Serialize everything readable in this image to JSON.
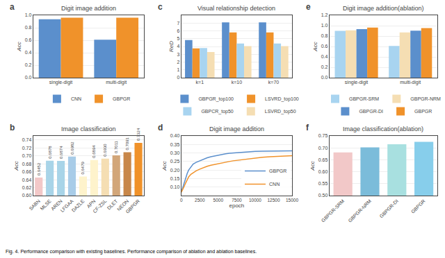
{
  "chart_data": [
    {
      "type": "bar",
      "title": "Digit image addition",
      "ylabel": "Acc",
      "categories": [
        "single-digit",
        "multi-digit"
      ],
      "series": [
        {
          "name": "CNN",
          "color": "#5b8fcc",
          "values": [
            0.935,
            0.607
          ]
        },
        {
          "name": "GBPGR",
          "color": "#f0922a",
          "values": [
            0.962,
            0.962
          ]
        }
      ],
      "ylim": [
        0.0,
        1.0
      ],
      "yticks": [
        {
          "value": 0,
          "label": "0.0"
        },
        0.2,
        0.4,
        0.6,
        0.8,
        {
          "value": 1,
          "label": "1.0"
        }
      ],
      "grid": true,
      "legend": "bottom",
      "annotations": [
        {
          "text": "a"
        }
      ]
    },
    {
      "type": "bar",
      "title": "Image classification",
      "ylabel": "Acc",
      "categories": [
        "SABN",
        "MLSE",
        "AREN",
        "LFGAA",
        "DAZLE",
        "APN",
        "CF-ZSL",
        "DLET",
        "NEON",
        "GBPGR"
      ],
      "values": [
        0.6452,
        0.6878,
        0.6874,
        0.6982,
        0.6479,
        0.6894,
        0.693,
        0.7011,
        0.7091,
        0.7324
      ],
      "value_labels": [
        "0.6452",
        "0.6878",
        "0.6874",
        "0.6982",
        "0.6479",
        "0.6894",
        "0.6930",
        "0.7011",
        "0.7091",
        "0.7324"
      ],
      "colors": [
        "#f2c8c8",
        "#a8d4e8",
        "#a8d4e8",
        "#a8cce8",
        "#fef3cc",
        "#fef3cc",
        "#f5deb3",
        "#d2a679",
        "#c8874a",
        "#f0922a"
      ],
      "data_labels": true,
      "ylim": [
        0.6,
        0.75
      ],
      "yticks": [
        {
          "value": 0.6,
          "label": "0.60"
        },
        0.62,
        0.64,
        0.66,
        0.68,
        {
          "value": 0.7,
          "label": "0.70"
        },
        0.72,
        0.74
      ],
      "grid": true,
      "annotations": [
        {
          "text": "b"
        }
      ]
    },
    {
      "type": "bar",
      "title": "Visual relationship detection",
      "ylabel": "ReD",
      "categories": [
        "k=1",
        "k=10",
        "k=70"
      ],
      "series": [
        {
          "name": "GBPGR_top100",
          "color": "#5b8fcc",
          "values": [
            4.82,
            7.08,
            7.08
          ]
        },
        {
          "name": "LSVRD_top100",
          "color": "#f0922a",
          "values": [
            3.76,
            5.79,
            5.79
          ]
        },
        {
          "name": "GBPCR_top50",
          "color": "#a8d4f0",
          "values": [
            3.79,
            4.38,
            4.38
          ]
        },
        {
          "name": "LSVRD_top50",
          "color": "#f5deb3",
          "values": [
            3.3,
            4.05,
            4.05
          ]
        }
      ],
      "ylim": [
        0,
        8
      ],
      "yticks": [
        0,
        1,
        2,
        3,
        4,
        5,
        6,
        7
      ],
      "grid": true,
      "legend": "bottom",
      "annotations": [
        {
          "text": "c"
        }
      ]
    },
    {
      "type": "line",
      "title": "Digit image addition",
      "xlabel": "epoch",
      "ylabel": "Acc",
      "x": [
        0,
        200,
        400,
        600,
        800,
        1000,
        1300,
        1600,
        2000,
        2500,
        3000,
        3500,
        4000,
        4500,
        5000,
        5500,
        6000,
        6500,
        7000,
        8000,
        9000,
        10000,
        11000,
        12000,
        13000,
        14000,
        15000
      ],
      "series": [
        {
          "name": "GBPGR",
          "color": "#5b8fcc",
          "values": [
            0.07,
            0.1,
            0.13,
            0.16,
            0.18,
            0.2,
            0.22,
            0.235,
            0.245,
            0.255,
            0.265,
            0.272,
            0.278,
            0.283,
            0.288,
            0.292,
            0.295,
            0.298,
            0.3,
            0.304,
            0.307,
            0.309,
            0.31,
            0.311,
            0.311,
            0.312,
            0.312
          ]
        },
        {
          "name": "CNN",
          "color": "#f0922a",
          "values": [
            0.07,
            0.085,
            0.105,
            0.125,
            0.145,
            0.16,
            0.175,
            0.185,
            0.195,
            0.205,
            0.215,
            0.222,
            0.228,
            0.233,
            0.238,
            0.242,
            0.246,
            0.25,
            0.254,
            0.26,
            0.265,
            0.27,
            0.275,
            0.278,
            0.28,
            0.282,
            0.284
          ]
        }
      ],
      "xlim": [
        0,
        15000
      ],
      "xticks": [
        0,
        2500,
        5000,
        7500,
        10000,
        12500,
        15000
      ],
      "ylim": [
        0.05,
        0.4
      ],
      "yticks": [
        {
          "value": 0.1,
          "label": "0.10"
        },
        0.15,
        {
          "value": 0.2,
          "label": "0.20"
        },
        0.25,
        {
          "value": 0.3,
          "label": "0.30"
        },
        0.35,
        {
          "value": 0.4,
          "label": "0.40"
        }
      ],
      "grid": true,
      "legend": "lower right",
      "annotations": [
        {
          "text": "d"
        }
      ]
    },
    {
      "type": "bar",
      "title": "Digit image addition(ablation)",
      "ylabel": "Acc",
      "categories": [
        "single-digit",
        "multi-digit"
      ],
      "series": [
        {
          "name": "GBPGR-SRM",
          "color": "#a8d4f0",
          "values": [
            0.9,
            0.61
          ]
        },
        {
          "name": "GBPGR-NRM",
          "color": "#f5deb3",
          "values": [
            0.91,
            0.87
          ]
        },
        {
          "name": "GBPGR-DI",
          "color": "#5b8fcc",
          "values": [
            0.935,
            0.905
          ]
        },
        {
          "name": "GBPGR",
          "color": "#f0922a",
          "values": [
            0.962,
            0.955
          ]
        }
      ],
      "ylim": [
        0.0,
        1.2
      ],
      "yticks": [
        {
          "value": 0,
          "label": "0.0"
        },
        0.2,
        0.4,
        0.6,
        0.8,
        {
          "value": 1,
          "label": "1.0"
        },
        1.2
      ],
      "grid": true,
      "legend": "bottom",
      "annotations": [
        {
          "text": "e"
        }
      ]
    },
    {
      "type": "bar",
      "title": "Image classification(ablation)",
      "ylabel": "Acc",
      "categories": [
        "GBPGR-SRM",
        "GBPGR-NRM",
        "GBPGR-DI",
        "GBPGR"
      ],
      "values": [
        0.681,
        0.702,
        0.715,
        0.725
      ],
      "colors": [
        "#f2c8c8",
        "#7bbcda",
        "#a8e0e0",
        "#87ceeb"
      ],
      "ylim": [
        0.5,
        0.75
      ],
      "yticks": [
        {
          "value": 0.5,
          "label": "0.50"
        },
        0.55,
        {
          "value": 0.6,
          "label": "0.60"
        },
        0.65,
        {
          "value": 0.7,
          "label": "0.70"
        },
        0.75
      ],
      "grid": true,
      "annotations": [
        {
          "text": "f"
        }
      ]
    }
  ],
  "caption": "Fig. 4. Performance comparison with existing baselines. Performance comparison of ablation and ablation baselines."
}
